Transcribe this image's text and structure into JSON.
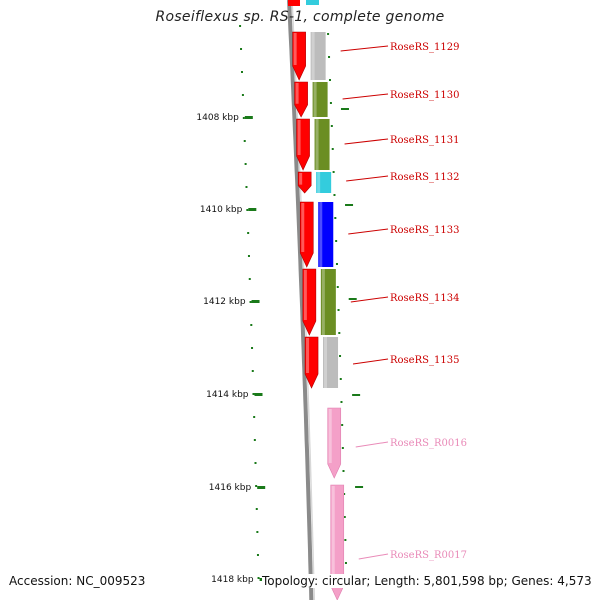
{
  "title": "Roseiflexus sp. RS-1, complete genome",
  "footer": {
    "accession": "Accession: NC_009523",
    "topology": "Topology: circular; Length: 5,801,598 bp; Genes: 4,573"
  },
  "colors": {
    "backbone": "#8a8a8a",
    "forward_strand": "#ff0000",
    "rna": "#f4a0c8",
    "tick": "#1a7a1a",
    "label_protein": "#cc0000",
    "label_rna": "#e98ab8",
    "cog_grey": "#bcbcbc",
    "cog_green": "#6b8e23",
    "cog_blue": "#0000ff",
    "cog_cyan": "#33ccdd"
  },
  "scale": {
    "unit": "kbp",
    "tick_labels": [
      "1408 kbp",
      "1410 kbp",
      "1412 kbp",
      "1414 kbp",
      "1416 kbp",
      "1418 kbp"
    ]
  },
  "genes": [
    {
      "label": "RoseRS_1129",
      "type": "protein",
      "cog_color": "#bcbcbc"
    },
    {
      "label": "RoseRS_1130",
      "type": "protein",
      "cog_color": "#6b8e23"
    },
    {
      "label": "RoseRS_1131",
      "type": "protein",
      "cog_color": "#6b8e23"
    },
    {
      "label": "RoseRS_1132",
      "type": "protein",
      "cog_color": "#33ccdd"
    },
    {
      "label": "RoseRS_1133",
      "type": "protein",
      "cog_color": "#0000ff"
    },
    {
      "label": "RoseRS_1134",
      "type": "protein",
      "cog_color": "#6b8e23"
    },
    {
      "label": "RoseRS_1135",
      "type": "protein",
      "cog_color": "#bcbcbc"
    },
    {
      "label": "RoseRS_R0016",
      "type": "rna",
      "cog_color": ""
    },
    {
      "label": "RoseRS_R0017",
      "type": "rna",
      "cog_color": ""
    }
  ]
}
